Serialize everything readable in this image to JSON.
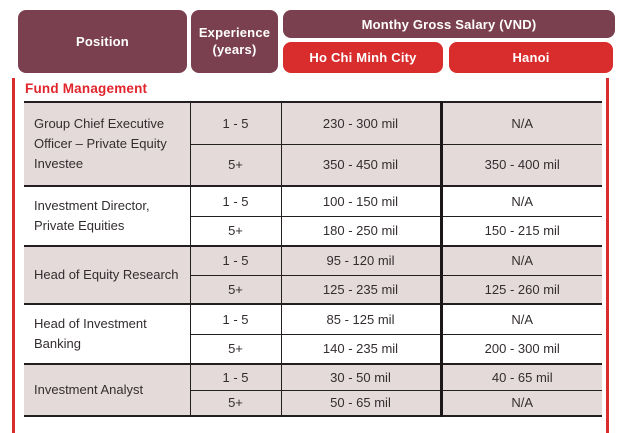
{
  "header": {
    "position": "Position",
    "experience_line1": "Experience",
    "experience_line2": "(years)",
    "salary_title": "Monthy Gross Salary (VND)",
    "city_hcmc": "Ho Chi Minh City",
    "city_hanoi": "Hanoi"
  },
  "section": {
    "title": "Fund Management"
  },
  "table": {
    "groups": [
      {
        "position": "Group Chief Executive Officer – Private Equity Investee",
        "rows": [
          {
            "experience": "1 - 5",
            "hcmc": "230 - 300 mil",
            "hanoi": "N/A"
          },
          {
            "experience": "5+",
            "hcmc": "350 - 450 mil",
            "hanoi": "350 - 400 mil"
          }
        ]
      },
      {
        "position": "Investment Director, Private Equities",
        "rows": [
          {
            "experience": "1 - 5",
            "hcmc": "100 - 150 mil",
            "hanoi": "N/A"
          },
          {
            "experience": "5+",
            "hcmc": "180 - 250 mil",
            "hanoi": "150 - 215 mil"
          }
        ]
      },
      {
        "position": "Head of Equity Research",
        "rows": [
          {
            "experience": "1 - 5",
            "hcmc": "95 - 120 mil",
            "hanoi": "N/A"
          },
          {
            "experience": "5+",
            "hcmc": "125 - 235 mil",
            "hanoi": "125 - 260 mil"
          }
        ]
      },
      {
        "position": "Head of Investment Banking",
        "rows": [
          {
            "experience": "1 - 5",
            "hcmc": "85 - 125 mil",
            "hanoi": "N/A"
          },
          {
            "experience": "5+",
            "hcmc": "140 - 235 mil",
            "hanoi": "200 - 300 mil"
          }
        ]
      },
      {
        "position": "Investment Analyst",
        "rows": [
          {
            "experience": "1 - 5",
            "hcmc": "30 - 50 mil",
            "hanoi": "40 - 65 mil"
          },
          {
            "experience": "5+",
            "hcmc": "50 - 65 mil",
            "hanoi": "N/A"
          }
        ]
      }
    ]
  },
  "colors": {
    "maroon": "#7b4050",
    "red": "#d92c2c",
    "row_pink": "#e5dada",
    "line_black": "#231f20",
    "text": "#332d2f"
  }
}
